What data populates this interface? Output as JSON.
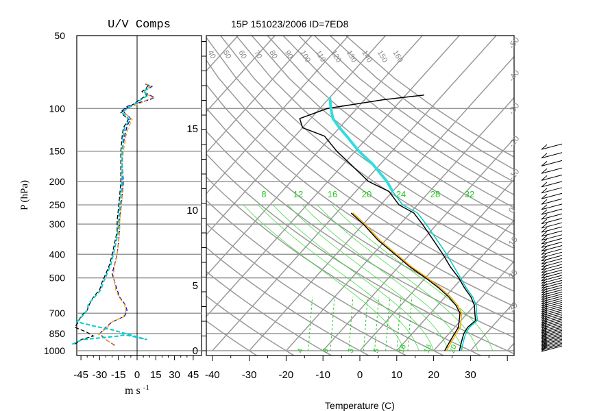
{
  "chart_data": [
    {
      "type": "line",
      "panel": "wind-components",
      "title": "U/V Comps",
      "xlabel": "m s",
      "xlabel_exponent": "-1",
      "ylabel": "P (hPa)",
      "y_scale": "log",
      "ylim": [
        1000,
        50
      ],
      "xlim": [
        -50,
        50
      ],
      "x_ticks": [
        -45,
        -30,
        -15,
        0,
        15,
        30,
        45
      ],
      "y_ticks": [
        50,
        100,
        150,
        200,
        250,
        300,
        400,
        500,
        700,
        850,
        1000
      ],
      "grid": "horizontal lines at pressure ticks, vertical zero line",
      "series": [
        {
          "color": "#0000cc",
          "style": "dashed",
          "points": [
            [
              -18,
              950
            ],
            [
              -25,
              900
            ],
            [
              -30,
              850
            ],
            [
              -25,
              800
            ],
            [
              -20,
              760
            ],
            [
              -10,
              720
            ],
            [
              -8,
              680
            ],
            [
              -10,
              640
            ],
            [
              -14,
              600
            ],
            [
              -16,
              560
            ],
            [
              -18,
              520
            ],
            [
              -20,
              480
            ],
            [
              -18,
              440
            ],
            [
              -16,
              400
            ],
            [
              -15,
              360
            ],
            [
              -14,
              320
            ],
            [
              -14,
              290
            ],
            [
              -13,
              260
            ],
            [
              -12,
              230
            ],
            [
              -11,
              200
            ],
            [
              -12,
              170
            ],
            [
              -12,
              150
            ],
            [
              -10,
              130
            ],
            [
              -8,
              118
            ],
            [
              -5,
              110
            ],
            [
              -12,
              102
            ],
            [
              -8,
              98
            ],
            [
              0,
              95
            ],
            [
              10,
              92
            ],
            [
              14,
              90
            ],
            [
              10,
              88
            ],
            [
              5,
              85
            ],
            [
              9,
              83
            ],
            [
              12,
              81
            ],
            [
              6,
              79
            ]
          ]
        },
        {
          "color": "#ff9900",
          "style": "dashed",
          "points": [
            [
              -18,
              955
            ],
            [
              -24,
              905
            ],
            [
              -31,
              855
            ],
            [
              -24,
              805
            ],
            [
              -21,
              765
            ],
            [
              -11,
              725
            ],
            [
              -9,
              685
            ],
            [
              -10,
              645
            ],
            [
              -14,
              605
            ],
            [
              -17,
              565
            ],
            [
              -18,
              525
            ],
            [
              -19,
              485
            ],
            [
              -18,
              445
            ],
            [
              -16,
              405
            ],
            [
              -15,
              365
            ],
            [
              -14,
              325
            ],
            [
              -14,
              295
            ],
            [
              -13,
              265
            ],
            [
              -12,
              235
            ],
            [
              -12,
              205
            ],
            [
              -12,
              175
            ],
            [
              -11,
              150
            ],
            [
              -9,
              130
            ],
            [
              -7,
              120
            ],
            [
              -4,
              111
            ],
            [
              -11,
              103
            ],
            [
              -7,
              99
            ],
            [
              1,
              96
            ],
            [
              8,
              92
            ],
            [
              13,
              90
            ],
            [
              9,
              88
            ],
            [
              6,
              85
            ],
            [
              8,
              83
            ],
            [
              11,
              81
            ],
            [
              7,
              79
            ]
          ]
        },
        {
          "color": "#000000",
          "style": "dashed",
          "points": [
            [
              -50,
              940
            ],
            [
              -45,
              900
            ],
            [
              -35,
              870
            ],
            [
              -40,
              840
            ],
            [
              -50,
              800
            ],
            [
              -47,
              760
            ],
            [
              -45,
              720
            ],
            [
              -40,
              680
            ],
            [
              -38,
              640
            ],
            [
              -35,
              600
            ],
            [
              -30,
              560
            ],
            [
              -28,
              520
            ],
            [
              -25,
              480
            ],
            [
              -22,
              440
            ],
            [
              -20,
              400
            ],
            [
              -18,
              360
            ],
            [
              -16,
              320
            ],
            [
              -16,
              290
            ],
            [
              -15,
              260
            ],
            [
              -14,
              230
            ],
            [
              -13,
              200
            ],
            [
              -13,
              170
            ],
            [
              -13,
              150
            ],
            [
              -12,
              130
            ],
            [
              -11,
              120
            ],
            [
              -7,
              111
            ],
            [
              -13,
              104
            ],
            [
              -9,
              100
            ],
            [
              -3,
              96
            ],
            [
              2,
              92
            ],
            [
              8,
              88
            ],
            [
              4,
              85
            ],
            [
              7,
              83
            ],
            [
              9,
              80
            ]
          ]
        },
        {
          "color": "#00cccc",
          "style": "dashed",
          "points": [
            [
              -52,
              940
            ],
            [
              -44,
              900
            ],
            [
              -25,
              880
            ],
            [
              -15,
              870
            ],
            [
              -10,
              860
            ],
            [
              0,
              880
            ],
            [
              8,
              900
            ],
            [
              -20,
              820
            ],
            [
              -35,
              790
            ],
            [
              -48,
              760
            ],
            [
              -44,
              720
            ],
            [
              -40,
              680
            ],
            [
              -39,
              640
            ],
            [
              -34,
              600
            ],
            [
              -29,
              560
            ],
            [
              -27,
              520
            ],
            [
              -24,
              480
            ],
            [
              -21,
              440
            ],
            [
              -19,
              400
            ],
            [
              -17,
              360
            ],
            [
              -15,
              320
            ],
            [
              -15,
              290
            ],
            [
              -14,
              260
            ],
            [
              -13,
              230
            ],
            [
              -12,
              200
            ],
            [
              -12,
              170
            ],
            [
              -12,
              150
            ],
            [
              -11,
              130
            ],
            [
              -10,
              120
            ],
            [
              -6,
              111
            ],
            [
              -12,
              104
            ],
            [
              -8,
              100
            ],
            [
              -2,
              96
            ],
            [
              3,
              92
            ],
            [
              9,
              88
            ],
            [
              5,
              85
            ],
            [
              8,
              83
            ],
            [
              10,
              80
            ]
          ]
        }
      ]
    },
    {
      "type": "line",
      "panel": "skew-t",
      "title": "15P 151023/2006 ID=7ED8",
      "xlabel": "Temperature (C)",
      "x_scale": "skewed",
      "x_ticks": [
        -40,
        -30,
        -20,
        -10,
        0,
        10,
        20,
        30
      ],
      "left_axis_ticks": [
        "0",
        "5",
        "10",
        "15"
      ],
      "theta_labels": [
        "40",
        "50",
        "60",
        "70",
        "80",
        "90",
        "100",
        "110",
        "120",
        "130",
        "140",
        "150",
        "160"
      ],
      "thetae_labels_top": [
        "8",
        "12",
        "16",
        "20",
        "24",
        "28",
        "32"
      ],
      "mixing_ratio_labels_bottom": [
        "4",
        "8",
        "3",
        "5",
        "16",
        "18",
        "20"
      ],
      "grid": "isotherms and pressure lines in gray, dry adiabats curved, moist adiabats green",
      "series": [
        {
          "color": "#000000",
          "points": [
            [
              27,
              1000
            ],
            [
              26,
              950
            ],
            [
              25,
              900
            ],
            [
              24,
              850
            ],
            [
              23.5,
              800
            ],
            [
              24,
              750
            ],
            [
              22,
              700
            ],
            [
              20,
              650
            ],
            [
              17,
              600
            ],
            [
              13,
              550
            ],
            [
              9,
              500
            ],
            [
              4,
              450
            ],
            [
              -1,
              400
            ],
            [
              -7,
              350
            ],
            [
              -14,
              300
            ],
            [
              -19,
              270
            ],
            [
              -25,
              250
            ],
            [
              -31,
              220
            ],
            [
              -39,
              200
            ],
            [
              -48,
              170
            ],
            [
              -55,
              150
            ],
            [
              -62,
              130
            ],
            [
              -70,
              120
            ],
            [
              -73,
              110
            ],
            [
              -68,
              100
            ],
            [
              -55,
              92
            ],
            [
              -45,
              88
            ]
          ]
        },
        {
          "color": "#00cccc",
          "points": [
            [
              27.5,
              1000
            ],
            [
              26.5,
              950
            ],
            [
              25.5,
              900
            ],
            [
              24.5,
              850
            ],
            [
              24,
              800
            ],
            [
              24.5,
              750
            ],
            [
              22.5,
              700
            ],
            [
              20.5,
              650
            ],
            [
              17.5,
              600
            ],
            [
              13.5,
              550
            ],
            [
              9.5,
              500
            ],
            [
              5,
              450
            ],
            [
              0,
              400
            ],
            [
              -6,
              350
            ],
            [
              -13,
              300
            ],
            [
              -18,
              270
            ],
            [
              -24,
              250
            ],
            [
              -30,
              220
            ]
          ]
        },
        {
          "color": "#000000",
          "points": [
            [
              23,
              1000
            ],
            [
              22.5,
              950
            ],
            [
              22,
              900
            ],
            [
              21.5,
              850
            ],
            [
              21,
              800
            ],
            [
              18,
              700
            ],
            [
              15,
              650
            ],
            [
              11,
              600
            ],
            [
              6,
              550
            ],
            [
              0,
              500
            ],
            [
              -7,
              450
            ],
            [
              -14,
              400
            ],
            [
              -22,
              350
            ],
            [
              -30,
              300
            ],
            [
              -36,
              270
            ]
          ]
        },
        {
          "color": "#ffaa00",
          "points": [
            [
              23.5,
              1000
            ],
            [
              23,
              950
            ],
            [
              22.5,
              900
            ],
            [
              22,
              850
            ],
            [
              21.5,
              800
            ],
            [
              18.5,
              700
            ],
            [
              15.5,
              650
            ],
            [
              11.5,
              600
            ],
            [
              6.5,
              550
            ],
            [
              0.5,
              500
            ],
            [
              -6.5,
              450
            ],
            [
              -13.5,
              400
            ],
            [
              -21.5,
              350
            ],
            [
              -29.5,
              300
            ],
            [
              -35.5,
              270
            ]
          ]
        },
        {
          "color": "#33dddd",
          "style": "thick",
          "points": [
            [
              -30,
              220
            ],
            [
              -34,
              200
            ],
            [
              -42,
              170
            ],
            [
              -49,
              150
            ],
            [
              -56,
              130
            ],
            [
              -60,
              120
            ],
            [
              -64,
              110
            ],
            [
              -67,
              100
            ],
            [
              -70,
              90
            ]
          ]
        }
      ]
    }
  ]
}
